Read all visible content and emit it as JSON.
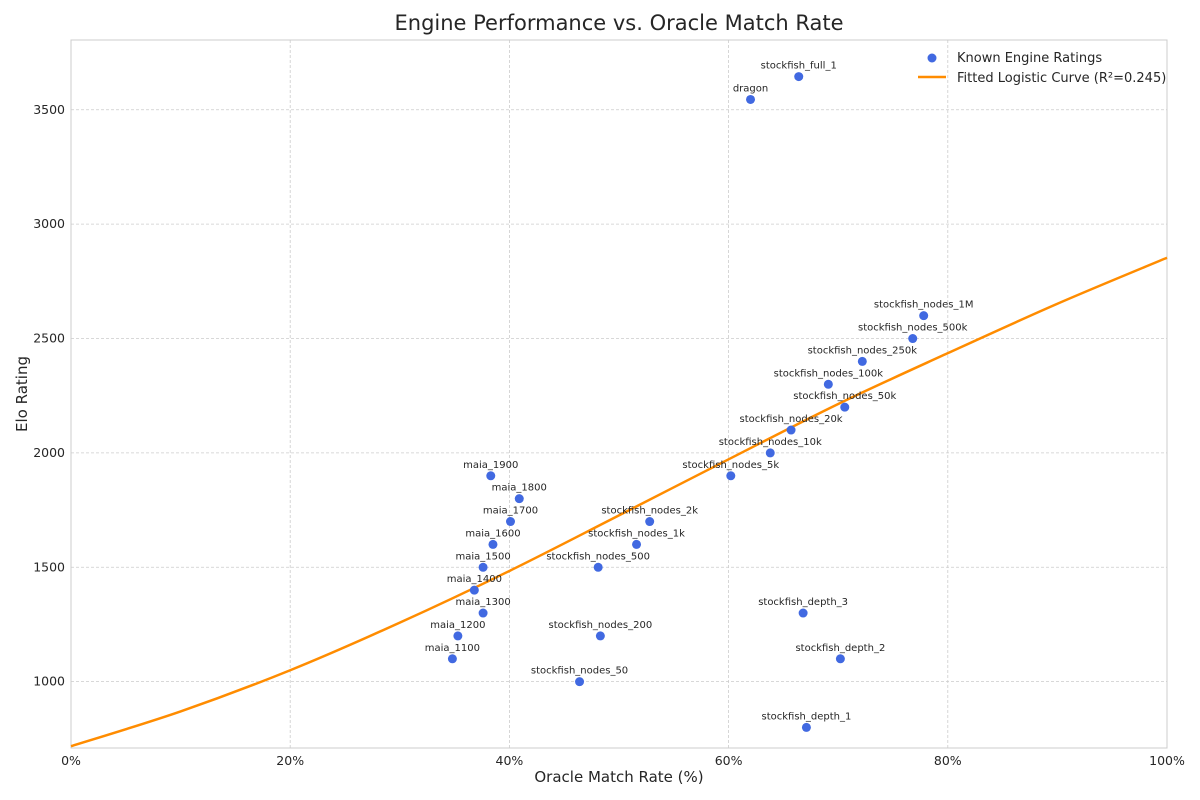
{
  "chart_data": {
    "type": "scatter",
    "title": "Engine Performance vs. Oracle Match Rate",
    "xlabel": "Oracle Match Rate (%)",
    "ylabel": "Elo Rating",
    "xlim": [
      0,
      100
    ],
    "ylim": [
      710,
      3805
    ],
    "x_ticks": [
      0,
      20,
      40,
      60,
      80,
      100
    ],
    "x_tick_labels": [
      "0%",
      "20%",
      "40%",
      "60%",
      "80%",
      "100%"
    ],
    "y_ticks": [
      1000,
      1500,
      2000,
      2500,
      3000,
      3500
    ],
    "y_tick_labels": [
      "1000",
      "1500",
      "2000",
      "2500",
      "3000",
      "3500"
    ],
    "grid": true,
    "legend_position": "top-right",
    "series": [
      {
        "name": "Known Engine Ratings",
        "kind": "scatter",
        "color": "#4169e1",
        "points": [
          {
            "label": "stockfish_full_1",
            "x": 66.4,
            "y": 3645
          },
          {
            "label": "dragon",
            "x": 62.0,
            "y": 3545
          },
          {
            "label": "stockfish_nodes_1M",
            "x": 77.8,
            "y": 2600
          },
          {
            "label": "stockfish_nodes_500k",
            "x": 76.8,
            "y": 2500
          },
          {
            "label": "stockfish_nodes_250k",
            "x": 72.2,
            "y": 2400
          },
          {
            "label": "stockfish_nodes_100k",
            "x": 69.1,
            "y": 2300
          },
          {
            "label": "stockfish_nodes_50k",
            "x": 70.6,
            "y": 2200
          },
          {
            "label": "stockfish_nodes_20k",
            "x": 65.7,
            "y": 2100
          },
          {
            "label": "stockfish_nodes_10k",
            "x": 63.8,
            "y": 2000
          },
          {
            "label": "stockfish_nodes_5k",
            "x": 60.2,
            "y": 1900
          },
          {
            "label": "stockfish_nodes_2k",
            "x": 52.8,
            "y": 1700
          },
          {
            "label": "stockfish_nodes_1k",
            "x": 51.6,
            "y": 1600
          },
          {
            "label": "stockfish_nodes_500",
            "x": 48.1,
            "y": 1500
          },
          {
            "label": "stockfish_nodes_200",
            "x": 48.3,
            "y": 1200
          },
          {
            "label": "stockfish_nodes_50",
            "x": 46.4,
            "y": 1000
          },
          {
            "label": "stockfish_depth_3",
            "x": 66.8,
            "y": 1300
          },
          {
            "label": "stockfish_depth_2",
            "x": 70.2,
            "y": 1100
          },
          {
            "label": "stockfish_depth_1",
            "x": 67.1,
            "y": 800
          },
          {
            "label": "maia_1900",
            "x": 38.3,
            "y": 1900
          },
          {
            "label": "maia_1800",
            "x": 40.9,
            "y": 1800
          },
          {
            "label": "maia_1700",
            "x": 40.1,
            "y": 1700
          },
          {
            "label": "maia_1600",
            "x": 38.5,
            "y": 1600
          },
          {
            "label": "maia_1500",
            "x": 37.6,
            "y": 1500
          },
          {
            "label": "maia_1400",
            "x": 36.8,
            "y": 1400
          },
          {
            "label": "maia_1300",
            "x": 37.6,
            "y": 1300
          },
          {
            "label": "maia_1200",
            "x": 35.3,
            "y": 1200
          },
          {
            "label": "maia_1100",
            "x": 34.8,
            "y": 1100
          }
        ]
      },
      {
        "name": "Fitted Logistic Curve (R²=0.245)",
        "kind": "line",
        "color": "#ff8c00",
        "curve": [
          {
            "x": 0,
            "y": 718
          },
          {
            "x": 10,
            "y": 870
          },
          {
            "x": 20,
            "y": 1050
          },
          {
            "x": 30,
            "y": 1258
          },
          {
            "x": 40,
            "y": 1484
          },
          {
            "x": 50,
            "y": 1727
          },
          {
            "x": 60,
            "y": 1972
          },
          {
            "x": 70,
            "y": 2214
          },
          {
            "x": 80,
            "y": 2436
          },
          {
            "x": 90,
            "y": 2652
          },
          {
            "x": 100,
            "y": 2853
          }
        ]
      }
    ]
  }
}
